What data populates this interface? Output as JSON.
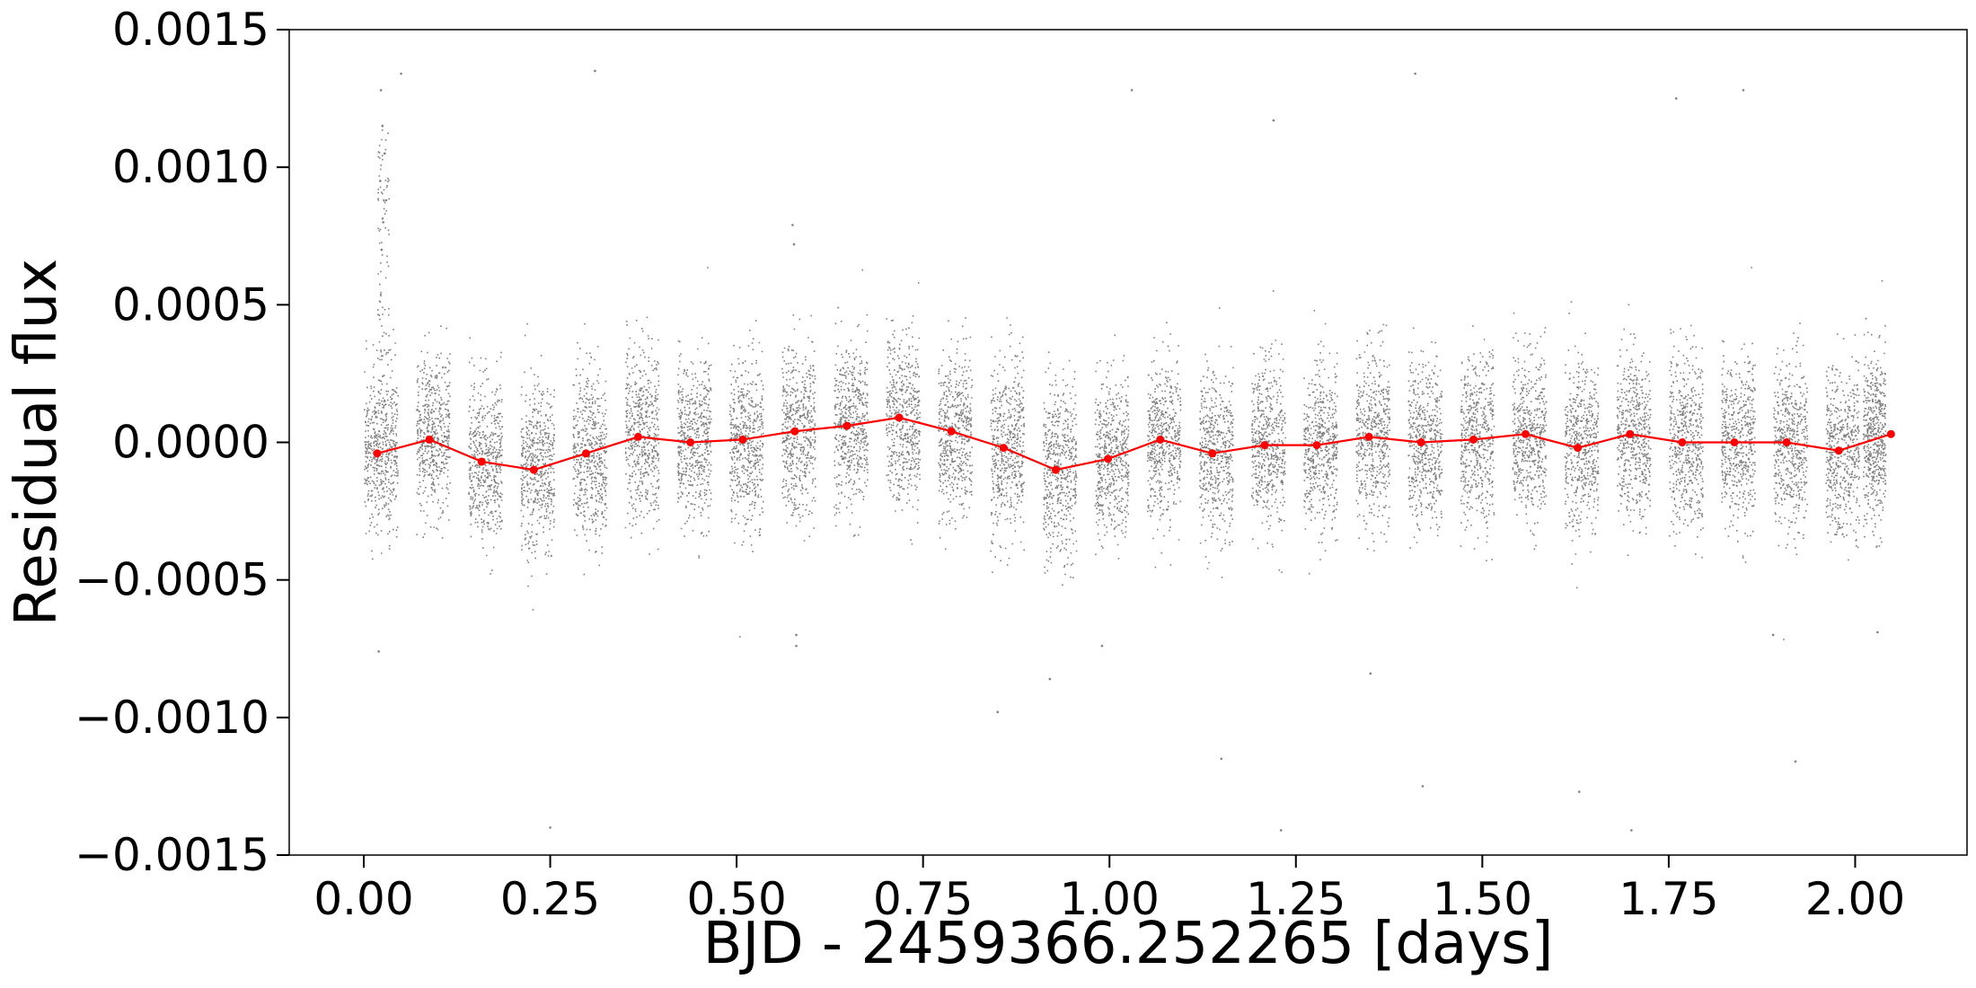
{
  "chart_data": {
    "type": "scatter",
    "title": "",
    "xlabel": "BJD - 2459366.252265 [days]",
    "ylabel": "Residual flux",
    "xlim": [
      -0.1,
      2.15
    ],
    "ylim": [
      -0.0015,
      0.0015
    ],
    "x_ticks": [
      0.0,
      0.25,
      0.5,
      0.75,
      1.0,
      1.25,
      1.5,
      1.75,
      2.0
    ],
    "x_tick_labels": [
      "0.00",
      "0.25",
      "0.50",
      "0.75",
      "1.00",
      "1.25",
      "1.50",
      "1.75",
      "2.00"
    ],
    "y_ticks": [
      -0.0015,
      -0.001,
      -0.0005,
      0.0,
      0.0005,
      0.001,
      0.0015
    ],
    "y_tick_labels": [
      "−0.0015",
      "−0.0010",
      "−0.0005",
      "0.0000",
      "0.0005",
      "0.0010",
      "0.0015"
    ],
    "grid": false,
    "colors": {
      "raw_points": "#808080",
      "binned": "#ff0000",
      "axes": "#000000"
    },
    "raw_data": {
      "description_visible": "dense gray scatter of residual flux points",
      "segments": [
        {
          "x_start": 0.0,
          "x_end": 0.045,
          "mean": -3e-05,
          "spread": 0.00024
        },
        {
          "x_start": 0.07,
          "x_end": 0.115,
          "mean": 2e-05,
          "spread": 0.00022
        },
        {
          "x_start": 0.14,
          "x_end": 0.185,
          "mean": -6e-05,
          "spread": 0.00024
        },
        {
          "x_start": 0.21,
          "x_end": 0.255,
          "mean": -0.0001,
          "spread": 0.00024
        },
        {
          "x_start": 0.28,
          "x_end": 0.325,
          "mean": -4e-05,
          "spread": 0.00024
        },
        {
          "x_start": 0.35,
          "x_end": 0.395,
          "mean": 3e-05,
          "spread": 0.00024
        },
        {
          "x_start": 0.42,
          "x_end": 0.465,
          "mean": 0.0,
          "spread": 0.00024
        },
        {
          "x_start": 0.49,
          "x_end": 0.535,
          "mean": 1e-05,
          "spread": 0.00024
        },
        {
          "x_start": 0.56,
          "x_end": 0.605,
          "mean": 4e-05,
          "spread": 0.00024
        },
        {
          "x_start": 0.63,
          "x_end": 0.675,
          "mean": 6e-05,
          "spread": 0.00024
        },
        {
          "x_start": 0.7,
          "x_end": 0.745,
          "mean": 9e-05,
          "spread": 0.00024
        },
        {
          "x_start": 0.77,
          "x_end": 0.815,
          "mean": 4e-05,
          "spread": 0.00024
        },
        {
          "x_start": 0.84,
          "x_end": 0.885,
          "mean": -2e-05,
          "spread": 0.00024
        },
        {
          "x_start": 0.91,
          "x_end": 0.955,
          "mean": -0.0001,
          "spread": 0.00026
        },
        {
          "x_start": 0.98,
          "x_end": 1.025,
          "mean": -6e-05,
          "spread": 0.00024
        },
        {
          "x_start": 1.05,
          "x_end": 1.095,
          "mean": 1e-05,
          "spread": 0.00022
        },
        {
          "x_start": 1.12,
          "x_end": 1.165,
          "mean": -4e-05,
          "spread": 0.00024
        },
        {
          "x_start": 1.19,
          "x_end": 1.235,
          "mean": -1e-05,
          "spread": 0.00024
        },
        {
          "x_start": 1.26,
          "x_end": 1.305,
          "mean": -1e-05,
          "spread": 0.00024
        },
        {
          "x_start": 1.33,
          "x_end": 1.375,
          "mean": 2e-05,
          "spread": 0.00024
        },
        {
          "x_start": 1.4,
          "x_end": 1.445,
          "mean": 0.0,
          "spread": 0.00024
        },
        {
          "x_start": 1.47,
          "x_end": 1.515,
          "mean": 1e-05,
          "spread": 0.00024
        },
        {
          "x_start": 1.54,
          "x_end": 1.585,
          "mean": 3e-05,
          "spread": 0.00024
        },
        {
          "x_start": 1.61,
          "x_end": 1.655,
          "mean": -2e-05,
          "spread": 0.00024
        },
        {
          "x_start": 1.68,
          "x_end": 1.725,
          "mean": 3e-05,
          "spread": 0.00024
        },
        {
          "x_start": 1.75,
          "x_end": 1.795,
          "mean": 0.0,
          "spread": 0.00024
        },
        {
          "x_start": 1.82,
          "x_end": 1.865,
          "mean": 0.0,
          "spread": 0.00024
        },
        {
          "x_start": 1.89,
          "x_end": 1.935,
          "mean": 0.0,
          "spread": 0.00024
        },
        {
          "x_start": 1.96,
          "x_end": 2.005,
          "mean": -3e-05,
          "spread": 0.00024
        },
        {
          "x_start": 2.01,
          "x_end": 2.04,
          "mean": 2e-05,
          "spread": 0.00024
        }
      ],
      "outliers": [
        {
          "x": 0.025,
          "y": 0.00115
        },
        {
          "x": 0.028,
          "y": 0.00105
        },
        {
          "x": 0.022,
          "y": 0.00095
        },
        {
          "x": 0.03,
          "y": 0.00088
        },
        {
          "x": 0.026,
          "y": 0.0008
        },
        {
          "x": 0.024,
          "y": 0.0007
        },
        {
          "x": 0.05,
          "y": 0.00134
        },
        {
          "x": 0.023,
          "y": 0.00128
        },
        {
          "x": 0.31,
          "y": 0.00135
        },
        {
          "x": 1.22,
          "y": 0.00117
        },
        {
          "x": 1.76,
          "y": 0.00125
        },
        {
          "x": 1.85,
          "y": 0.00128
        },
        {
          "x": 1.03,
          "y": 0.00128
        },
        {
          "x": 1.41,
          "y": 0.00134
        },
        {
          "x": 0.575,
          "y": 0.00079
        },
        {
          "x": 0.577,
          "y": 0.00072
        },
        {
          "x": 0.58,
          "y": -0.00074
        },
        {
          "x": 0.58,
          "y": -0.0007
        },
        {
          "x": 0.92,
          "y": -0.00086
        },
        {
          "x": 1.15,
          "y": -0.00115
        },
        {
          "x": 1.23,
          "y": -0.00141
        },
        {
          "x": 1.42,
          "y": -0.00125
        },
        {
          "x": 1.63,
          "y": -0.00127
        },
        {
          "x": 1.7,
          "y": -0.00141
        },
        {
          "x": 1.92,
          "y": -0.00116
        },
        {
          "x": 0.25,
          "y": -0.0014
        },
        {
          "x": 0.85,
          "y": -0.00098
        },
        {
          "x": 0.02,
          "y": -0.00076
        },
        {
          "x": 0.99,
          "y": -0.00074
        },
        {
          "x": 1.89,
          "y": -0.0007
        },
        {
          "x": 2.03,
          "y": -0.00069
        },
        {
          "x": 1.35,
          "y": -0.00084
        }
      ]
    },
    "series": [
      {
        "x": [
          0.018,
          0.088,
          0.158,
          0.228,
          0.298,
          0.368,
          0.438,
          0.508,
          0.578,
          0.648,
          0.718,
          0.788,
          0.858,
          0.928,
          0.998,
          1.068,
          1.138,
          1.208,
          1.278,
          1.348,
          1.418,
          1.488,
          1.558,
          1.628,
          1.698,
          1.768,
          1.838,
          1.908,
          1.978,
          2.048
        ],
        "y": [
          -4e-05,
          1e-05,
          -7e-05,
          -0.0001,
          -4e-05,
          2e-05,
          0.0,
          1e-05,
          4e-05,
          6e-05,
          9e-05,
          4e-05,
          -2e-05,
          -0.0001,
          -6e-05,
          1e-05,
          -4e-05,
          -1e-05,
          -1e-05,
          2e-05,
          0.0,
          1e-05,
          3e-05,
          -2e-05,
          3e-05,
          0.0,
          0.0,
          0.0,
          -3e-05,
          3e-05
        ]
      }
    ]
  }
}
